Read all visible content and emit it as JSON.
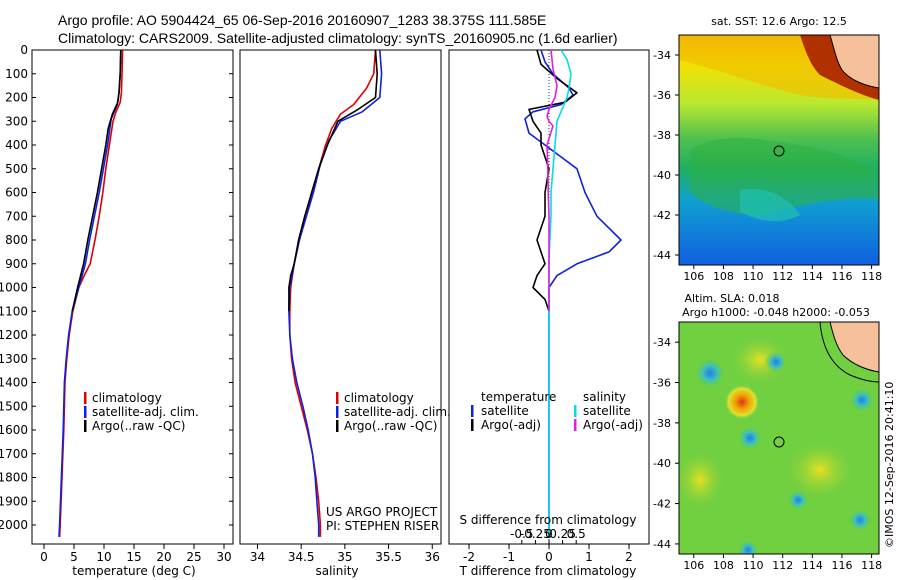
{
  "header": {
    "line1": "Argo profile: AO 5904424_65 06-Sep-2016 20160907_1283 38.375S 111.585E",
    "line2": "Climatology: CARS2009. Satellite-adjusted climatology: synTS_20160905.nc (1.6d earlier)"
  },
  "colors": {
    "climatology": "#e00000",
    "satellite": "#1020e0",
    "argo": "#000000",
    "salinity_satellite": "#00e0e0",
    "salinity_argo": "#e020e0"
  },
  "chart_data": [
    {
      "type": "line",
      "id": "temperature",
      "xlabel": "temperature (deg C)",
      "ylabel": "",
      "xlim": [
        -2,
        31.5
      ],
      "ylim": [
        2080,
        0
      ],
      "xticks": [
        0,
        5,
        10,
        15,
        20,
        25,
        30
      ],
      "yticks": [
        0,
        100,
        200,
        300,
        400,
        500,
        600,
        700,
        800,
        900,
        1000,
        1100,
        1200,
        1300,
        1400,
        1500,
        1600,
        1700,
        1800,
        1900,
        2000
      ],
      "legend": [
        "climatology",
        "satellite-adj. clim.",
        "Argo(..raw -QC)"
      ],
      "legend_position": "lower-left",
      "series": [
        {
          "name": "climatology",
          "color": "#e00000",
          "points": [
            [
              13.1,
              0
            ],
            [
              13.0,
              100
            ],
            [
              12.9,
              180
            ],
            [
              12.7,
              220
            ],
            [
              12.0,
              260
            ],
            [
              11.5,
              300
            ],
            [
              10.9,
              400
            ],
            [
              10.3,
              500
            ],
            [
              9.8,
              600
            ],
            [
              9.2,
              700
            ],
            [
              8.5,
              800
            ],
            [
              7.7,
              900
            ],
            [
              6.7,
              950
            ],
            [
              5.8,
              1000
            ],
            [
              4.8,
              1100
            ],
            [
              4.2,
              1200
            ],
            [
              3.8,
              1300
            ],
            [
              3.5,
              1400
            ],
            [
              3.3,
              1600
            ],
            [
              3.0,
              1800
            ],
            [
              2.7,
              2000
            ],
            [
              2.6,
              2050
            ]
          ]
        },
        {
          "name": "satellite-adj. clim.",
          "color": "#1020e0",
          "points": [
            [
              12.8,
              0
            ],
            [
              12.7,
              100
            ],
            [
              12.5,
              180
            ],
            [
              12.2,
              230
            ],
            [
              11.2,
              290
            ],
            [
              10.6,
              400
            ],
            [
              9.9,
              500
            ],
            [
              9.2,
              600
            ],
            [
              8.4,
              700
            ],
            [
              7.6,
              800
            ],
            [
              6.9,
              900
            ],
            [
              5.8,
              1000
            ],
            [
              4.7,
              1100
            ],
            [
              4.1,
              1200
            ],
            [
              3.7,
              1300
            ],
            [
              3.4,
              1400
            ],
            [
              3.2,
              1600
            ],
            [
              2.9,
              1800
            ],
            [
              2.6,
              2000
            ],
            [
              2.5,
              2050
            ]
          ]
        },
        {
          "name": "Argo(..raw -QC)",
          "color": "#000000",
          "points": [
            [
              12.8,
              0
            ],
            [
              12.7,
              100
            ],
            [
              12.5,
              180
            ],
            [
              12.3,
              220
            ],
            [
              11.4,
              270
            ],
            [
              10.7,
              330
            ],
            [
              10.3,
              400
            ],
            [
              9.6,
              500
            ],
            [
              8.9,
              600
            ],
            [
              8.1,
              700
            ],
            [
              7.3,
              800
            ],
            [
              6.6,
              900
            ],
            [
              5.6,
              1000
            ],
            [
              4.7,
              1100
            ]
          ]
        }
      ]
    },
    {
      "type": "line",
      "id": "salinity",
      "xlabel": "salinity",
      "ylabel": "",
      "xlim": [
        33.8,
        36.1
      ],
      "ylim": [
        2080,
        0
      ],
      "xticks": [
        34,
        34.5,
        35,
        35.5,
        36
      ],
      "xtick_labels": [
        "34",
        "34.5",
        "35",
        "35.5",
        "36"
      ],
      "legend": [
        "climatology",
        "satellite-adj. clim.",
        "Argo(..raw -QC)"
      ],
      "legend_position": "lower-right",
      "annotation": [
        "US ARGO PROJECT",
        "PI: STEPHEN RISER"
      ],
      "series": [
        {
          "name": "climatology",
          "color": "#e00000",
          "points": [
            [
              35.35,
              0
            ],
            [
              35.33,
              100
            ],
            [
              35.25,
              160
            ],
            [
              35.1,
              230
            ],
            [
              34.95,
              270
            ],
            [
              34.85,
              330
            ],
            [
              34.78,
              400
            ],
            [
              34.7,
              500
            ],
            [
              34.62,
              600
            ],
            [
              34.55,
              700
            ],
            [
              34.48,
              800
            ],
            [
              34.42,
              900
            ],
            [
              34.38,
              1000
            ],
            [
              34.37,
              1100
            ],
            [
              34.37,
              1200
            ],
            [
              34.39,
              1300
            ],
            [
              34.43,
              1400
            ],
            [
              34.5,
              1500
            ],
            [
              34.57,
              1600
            ],
            [
              34.63,
              1700
            ],
            [
              34.67,
              1800
            ],
            [
              34.7,
              1900
            ],
            [
              34.72,
              2000
            ],
            [
              34.72,
              2050
            ]
          ]
        },
        {
          "name": "satellite-adj. clim.",
          "color": "#1020e0",
          "points": [
            [
              35.4,
              0
            ],
            [
              35.42,
              100
            ],
            [
              35.4,
              200
            ],
            [
              35.2,
              260
            ],
            [
              34.95,
              300
            ],
            [
              34.82,
              380
            ],
            [
              34.72,
              480
            ],
            [
              34.64,
              600
            ],
            [
              34.56,
              700
            ],
            [
              34.48,
              800
            ],
            [
              34.42,
              900
            ],
            [
              34.37,
              1000
            ],
            [
              34.36,
              1100
            ],
            [
              34.37,
              1200
            ],
            [
              34.4,
              1300
            ],
            [
              34.45,
              1400
            ],
            [
              34.52,
              1500
            ],
            [
              34.58,
              1600
            ],
            [
              34.63,
              1700
            ],
            [
              34.66,
              1800
            ],
            [
              34.68,
              1900
            ],
            [
              34.7,
              2000
            ],
            [
              34.7,
              2050
            ]
          ]
        },
        {
          "name": "Argo(..raw -QC)",
          "color": "#000000",
          "points": [
            [
              35.35,
              0
            ],
            [
              35.37,
              100
            ],
            [
              35.35,
              200
            ],
            [
              35.15,
              250
            ],
            [
              34.92,
              300
            ],
            [
              34.8,
              400
            ],
            [
              34.7,
              500
            ],
            [
              34.62,
              600
            ],
            [
              34.54,
              700
            ],
            [
              34.47,
              800
            ],
            [
              34.42,
              900
            ],
            [
              34.38,
              950
            ],
            [
              34.36,
              1000
            ],
            [
              34.36,
              1100
            ]
          ]
        }
      ]
    },
    {
      "type": "line",
      "id": "difference",
      "xlabel": "T difference from climatology",
      "xlabel_top": "S difference from climatology",
      "xlim": [
        -2.5,
        2.5
      ],
      "ylim": [
        2080,
        0
      ],
      "xticks": [
        -2,
        -1,
        0,
        1,
        2
      ],
      "xtick_labels": [
        "-2",
        "-1",
        "0",
        "1",
        "2"
      ],
      "top_ticks": [
        -0.5,
        -0.25,
        0,
        0.25,
        0.5
      ],
      "top_tick_labels": [
        "-0.5",
        "-0.25",
        "0",
        "0.25",
        "0.5"
      ],
      "legend_temperature": {
        "title": "temperature",
        "items": [
          "satellite",
          "Argo(-adj)"
        ]
      },
      "legend_salinity": {
        "title": "salinity",
        "items": [
          "satellite",
          "Argo(-adj)"
        ]
      },
      "series": [
        {
          "name": "T satellite",
          "color": "#1020e0",
          "points": [
            [
              -0.2,
              0
            ],
            [
              -0.1,
              50
            ],
            [
              0.1,
              100
            ],
            [
              0.5,
              160
            ],
            [
              0.6,
              190
            ],
            [
              0.3,
              230
            ],
            [
              -0.4,
              260
            ],
            [
              -0.6,
              290
            ],
            [
              -0.5,
              350
            ],
            [
              -0.1,
              400
            ],
            [
              0.3,
              450
            ],
            [
              0.7,
              500
            ],
            [
              0.9,
              600
            ],
            [
              1.2,
              700
            ],
            [
              1.8,
              800
            ],
            [
              1.5,
              850
            ],
            [
              0.7,
              900
            ],
            [
              0.2,
              950
            ],
            [
              0,
              1000
            ],
            [
              0,
              1200
            ],
            [
              0,
              2050
            ]
          ]
        },
        {
          "name": "T Argo(-adj)",
          "color": "#000000",
          "points": [
            [
              -0.3,
              0
            ],
            [
              -0.2,
              60
            ],
            [
              0.2,
              120
            ],
            [
              0.7,
              180
            ],
            [
              0.4,
              220
            ],
            [
              -0.5,
              250
            ],
            [
              -0.4,
              300
            ],
            [
              -0.2,
              350
            ],
            [
              -0.2,
              400
            ],
            [
              -0.1,
              450
            ],
            [
              0,
              500
            ],
            [
              -0.1,
              600
            ],
            [
              -0.1,
              700
            ],
            [
              -0.3,
              800
            ],
            [
              -0.2,
              850
            ],
            [
              -0.1,
              900
            ],
            [
              -0.3,
              950
            ],
            [
              -0.4,
              1000
            ],
            [
              -0.1,
              1050
            ],
            [
              0,
              1100
            ]
          ]
        },
        {
          "name": "S satellite",
          "color": "#00e0e0",
          "points": [
            [
              0.3,
              0
            ],
            [
              0.45,
              40
            ],
            [
              0.55,
              100
            ],
            [
              0.5,
              160
            ],
            [
              0.45,
              200
            ],
            [
              0.3,
              260
            ],
            [
              0.2,
              300
            ],
            [
              0.15,
              400
            ],
            [
              0.1,
              500
            ],
            [
              0.05,
              600
            ],
            [
              0.05,
              700
            ],
            [
              0.02,
              800
            ],
            [
              0,
              900
            ],
            [
              0,
              1000
            ],
            [
              0,
              1500
            ],
            [
              0,
              2050
            ]
          ]
        },
        {
          "name": "S Argo(-adj)",
          "color": "#e020e0",
          "points": [
            [
              0.05,
              0
            ],
            [
              0.1,
              80
            ],
            [
              0.2,
              150
            ],
            [
              0.15,
              200
            ],
            [
              0,
              250
            ],
            [
              -0.05,
              280
            ],
            [
              0,
              300
            ],
            [
              0.1,
              320
            ],
            [
              -0.05,
              400
            ],
            [
              -0.03,
              500
            ],
            [
              -0.02,
              600
            ],
            [
              0,
              700
            ],
            [
              0,
              800
            ],
            [
              0,
              900
            ],
            [
              0,
              1000
            ],
            [
              0,
              1100
            ]
          ]
        }
      ]
    }
  ],
  "maps": {
    "sst": {
      "title": "sat. SST: 12.6 Argo: 12.5",
      "xticks": [
        "106",
        "108",
        "110",
        "112",
        "114",
        "116",
        "118"
      ],
      "yticks": [
        "-34",
        "-36",
        "-38",
        "-40",
        "-42",
        "-44"
      ],
      "lon_range": [
        105,
        118.5
      ],
      "lat_range": [
        -44.5,
        -33
      ],
      "profile_lon": 111.585,
      "profile_lat": -38.375
    },
    "sla": {
      "title_line1": "Altim. SLA: 0.018",
      "title_line2": "Argo h1000: -0.048 h2000: -0.053",
      "xticks": [
        "106",
        "108",
        "110",
        "112",
        "114",
        "116",
        "118"
      ],
      "yticks": [
        "-34",
        "-36",
        "-38",
        "-40",
        "-42",
        "-44"
      ],
      "lon_range": [
        105,
        118.5
      ],
      "lat_range": [
        -44.5,
        -33
      ],
      "profile_lon": 111.585,
      "profile_lat": -38.375
    }
  },
  "footer_vertical": "©IMOS 12-Sep-2016 20:41:10"
}
